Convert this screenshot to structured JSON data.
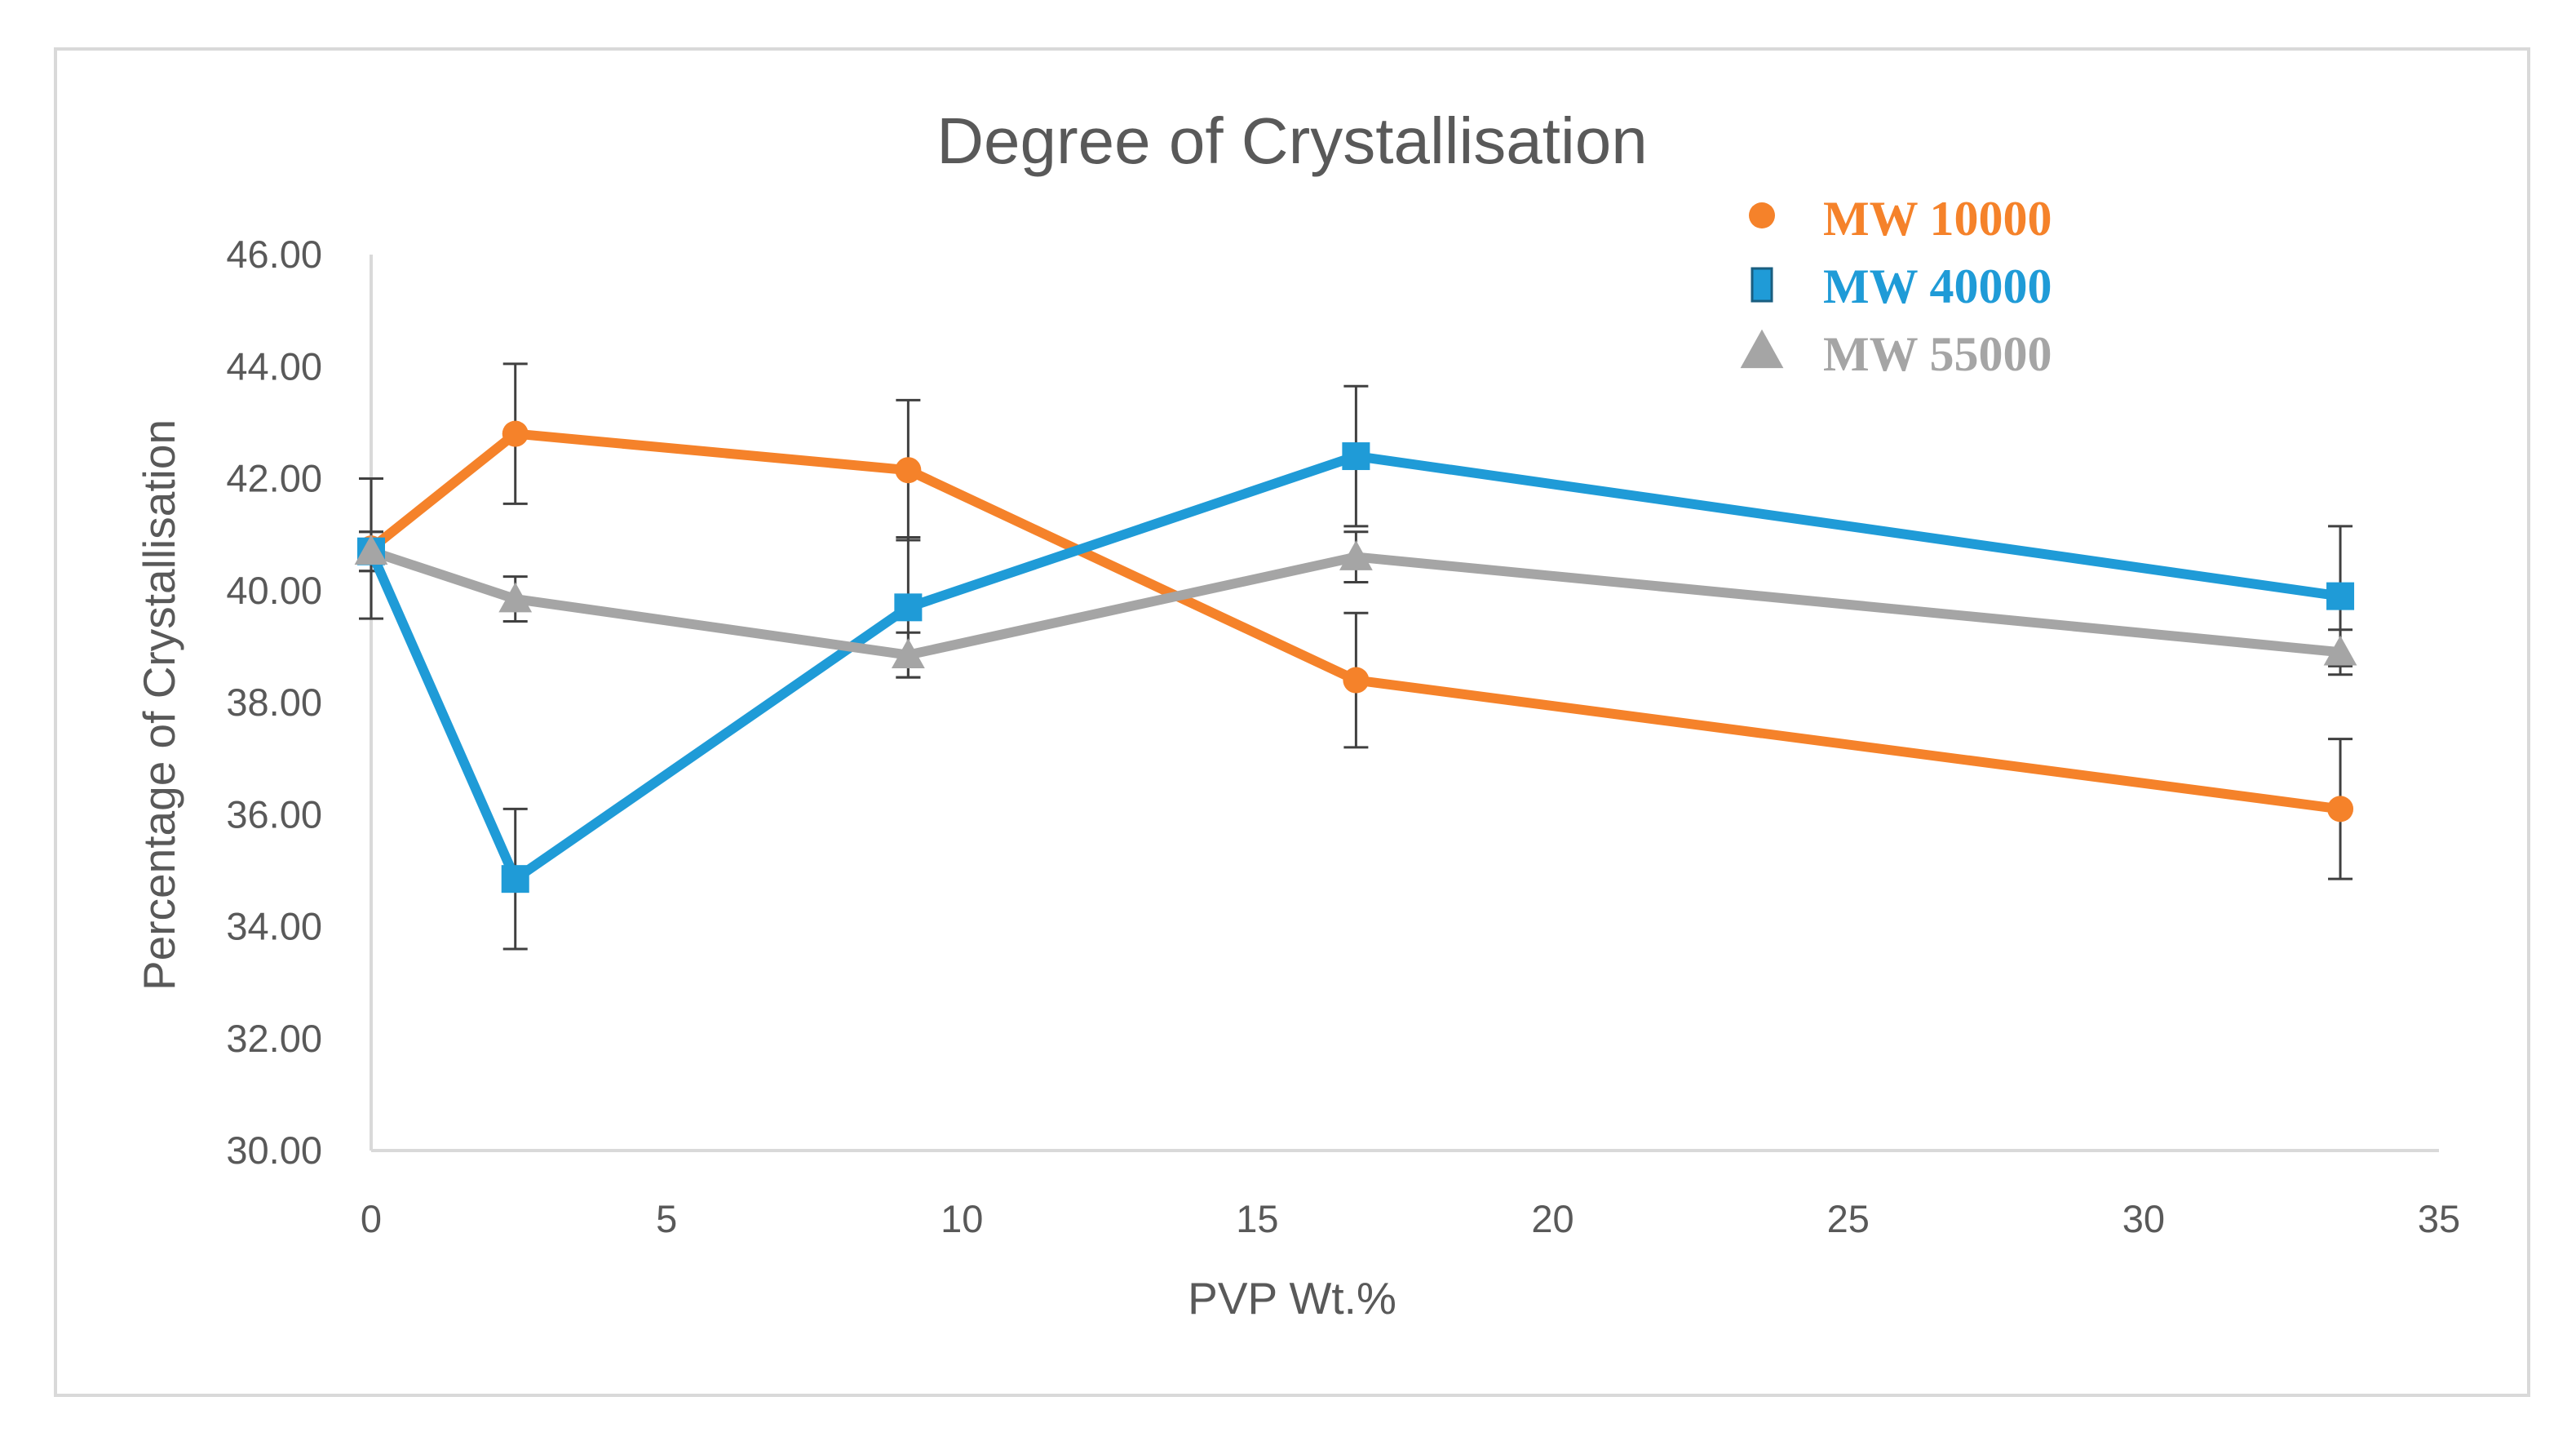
{
  "chart_data": {
    "type": "line",
    "title": "Degree of Crystallisation",
    "xlabel": "PVP Wt.%",
    "ylabel": "Percentage of Crystallisation",
    "xlim": [
      0,
      35
    ],
    "ylim": [
      30,
      46
    ],
    "x_ticks": [
      0,
      5,
      10,
      15,
      20,
      25,
      30,
      35
    ],
    "x_tick_labels": [
      "0",
      "5",
      "10",
      "15",
      "20",
      "25",
      "30",
      "35"
    ],
    "y_ticks": [
      30,
      32,
      34,
      36,
      38,
      40,
      42,
      44,
      46
    ],
    "y_tick_labels": [
      "30.00",
      "32.00",
      "34.00",
      "36.00",
      "38.00",
      "40.00",
      "42.00",
      "44.00",
      "46.00"
    ],
    "grid": false,
    "legend_position": "top-right",
    "series": [
      {
        "name": "MW 10000",
        "color": "#F5822A",
        "marker": "circle",
        "x": [
          0,
          2.44,
          9.09,
          16.67,
          33.33
        ],
        "y": [
          40.75,
          42.8,
          42.15,
          38.4,
          36.1
        ],
        "err": [
          1.25,
          1.25,
          1.25,
          1.2,
          1.25
        ]
      },
      {
        "name": "MW 40000",
        "color": "#1F9BD7",
        "marker": "square",
        "x": [
          0,
          2.44,
          9.09,
          16.67,
          33.33
        ],
        "y": [
          40.7,
          34.85,
          39.7,
          42.4,
          39.9
        ],
        "err": [
          0.35,
          1.25,
          1.25,
          1.25,
          1.25
        ]
      },
      {
        "name": "MW 55000",
        "color": "#A5A5A5",
        "marker": "triangle",
        "x": [
          0,
          2.44,
          9.09,
          16.67,
          33.33
        ],
        "y": [
          40.7,
          39.85,
          38.85,
          40.6,
          38.9
        ],
        "err": [
          0.35,
          0.4,
          0.4,
          0.45,
          0.4
        ]
      }
    ]
  }
}
